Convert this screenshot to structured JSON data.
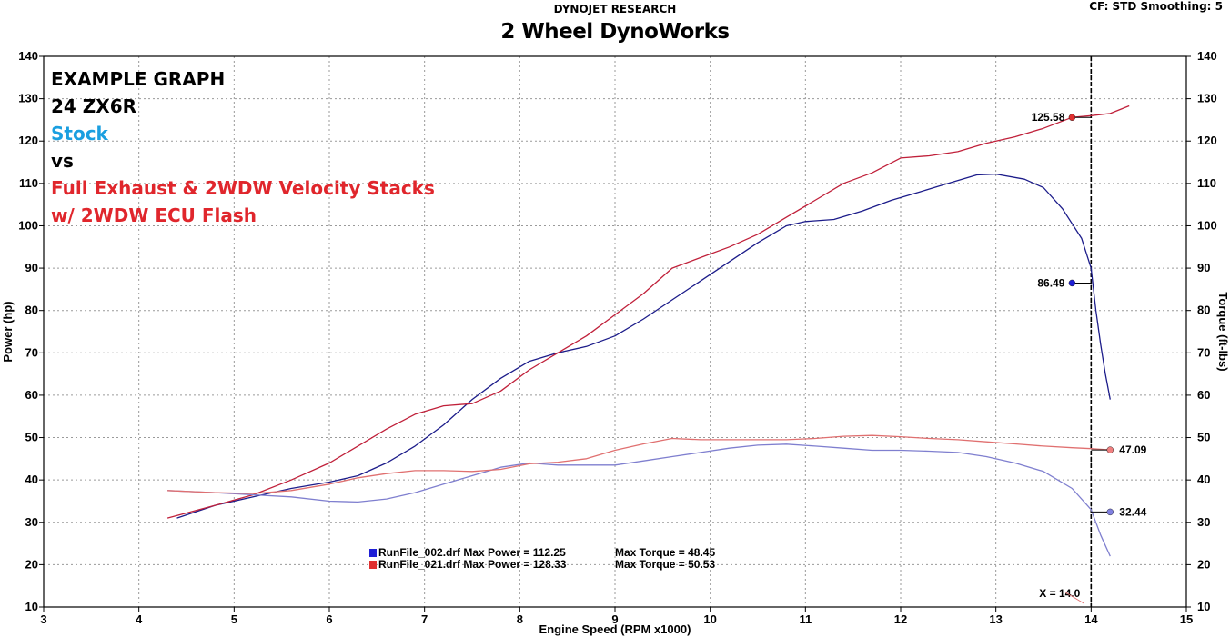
{
  "header": {
    "top_title": "DYNOJET RESEARCH",
    "main_title": "2 Wheel DynoWorks",
    "corner_info": "CF: STD  Smoothing: 5"
  },
  "annotations": [
    "EXAMPLE GRAPH",
    "24 ZX6R",
    "Stock",
    "vs",
    "Full Exhaust & 2WDW Velocity Stacks",
    "w/ 2WDW ECU Flash"
  ],
  "legend": [
    {
      "file": "RunFile_002.drf Max Power = 112.25",
      "torque": "Max Torque = 48.45",
      "color": "#1f1fd6"
    },
    {
      "file": "RunFile_021.drf Max Power = 128.33",
      "torque": "Max Torque = 50.53",
      "color": "#e03030"
    }
  ],
  "chart_data": {
    "type": "line",
    "title": "2 Wheel DynoWorks",
    "xlabel": "Engine Speed (RPM x1000)",
    "ylabel": "Power (hp)",
    "y2label": "Torque (ft-lbs)",
    "xlim": [
      3,
      15
    ],
    "ylim": [
      10,
      140
    ],
    "y2lim": [
      10,
      140
    ],
    "x_ticks": [
      3,
      4,
      5,
      6,
      7,
      8,
      9,
      10,
      11,
      12,
      13,
      14,
      15
    ],
    "y_ticks": [
      10,
      20,
      30,
      40,
      50,
      60,
      70,
      80,
      90,
      100,
      110,
      120,
      130,
      140
    ],
    "grid": true,
    "cursor": {
      "x": 14.0,
      "label": "X = 14.0"
    },
    "series": [
      {
        "name": "RunFile_002.drf",
        "measure": "power",
        "color": "#1c1c8a",
        "points": [
          [
            4.4,
            31
          ],
          [
            4.8,
            34
          ],
          [
            5.2,
            36
          ],
          [
            5.6,
            38
          ],
          [
            6.0,
            39.5
          ],
          [
            6.3,
            41
          ],
          [
            6.6,
            44
          ],
          [
            6.9,
            48
          ],
          [
            7.2,
            53
          ],
          [
            7.5,
            59
          ],
          [
            7.8,
            64
          ],
          [
            8.1,
            68
          ],
          [
            8.4,
            70
          ],
          [
            8.7,
            71.5
          ],
          [
            9.0,
            74
          ],
          [
            9.3,
            78
          ],
          [
            9.6,
            82.5
          ],
          [
            9.9,
            87
          ],
          [
            10.2,
            91.5
          ],
          [
            10.5,
            96
          ],
          [
            10.8,
            100
          ],
          [
            11.0,
            101
          ],
          [
            11.3,
            101.5
          ],
          [
            11.6,
            103.5
          ],
          [
            11.9,
            106
          ],
          [
            12.2,
            108
          ],
          [
            12.5,
            110
          ],
          [
            12.8,
            112
          ],
          [
            13.0,
            112.2
          ],
          [
            13.3,
            111
          ],
          [
            13.5,
            109
          ],
          [
            13.7,
            104
          ],
          [
            13.9,
            97
          ],
          [
            14.0,
            90
          ],
          [
            14.05,
            80
          ],
          [
            14.1,
            72
          ],
          [
            14.15,
            65
          ],
          [
            14.2,
            59
          ]
        ]
      },
      {
        "name": "RunFile_021.drf",
        "measure": "power",
        "color": "#c0203a",
        "points": [
          [
            4.3,
            31
          ],
          [
            4.8,
            34
          ],
          [
            5.2,
            36.5
          ],
          [
            5.6,
            40
          ],
          [
            6.0,
            44
          ],
          [
            6.3,
            48
          ],
          [
            6.6,
            52
          ],
          [
            6.9,
            55.5
          ],
          [
            7.2,
            57.5
          ],
          [
            7.5,
            58
          ],
          [
            7.8,
            61
          ],
          [
            8.1,
            66
          ],
          [
            8.4,
            70
          ],
          [
            8.7,
            74
          ],
          [
            9.0,
            79
          ],
          [
            9.3,
            84
          ],
          [
            9.6,
            90
          ],
          [
            9.9,
            92.5
          ],
          [
            10.2,
            95
          ],
          [
            10.5,
            98
          ],
          [
            10.8,
            102
          ],
          [
            11.1,
            106
          ],
          [
            11.4,
            110
          ],
          [
            11.7,
            112.5
          ],
          [
            12.0,
            116
          ],
          [
            12.3,
            116.5
          ],
          [
            12.6,
            117.5
          ],
          [
            12.9,
            119.5
          ],
          [
            13.2,
            121
          ],
          [
            13.5,
            123
          ],
          [
            13.8,
            125.58
          ],
          [
            14.0,
            126
          ],
          [
            14.2,
            126.5
          ],
          [
            14.4,
            128.3
          ]
        ]
      },
      {
        "name": "RunFile_002.drf",
        "measure": "torque",
        "color": "#7f7fcf",
        "points": [
          [
            4.3,
            37.5
          ],
          [
            4.8,
            37
          ],
          [
            5.2,
            36.5
          ],
          [
            5.6,
            36
          ],
          [
            6.0,
            35
          ],
          [
            6.3,
            34.8
          ],
          [
            6.6,
            35.5
          ],
          [
            6.9,
            37
          ],
          [
            7.2,
            39
          ],
          [
            7.5,
            41
          ],
          [
            7.8,
            43
          ],
          [
            8.1,
            44
          ],
          [
            8.4,
            43.5
          ],
          [
            8.7,
            43.5
          ],
          [
            9.0,
            43.5
          ],
          [
            9.3,
            44.5
          ],
          [
            9.6,
            45.5
          ],
          [
            9.9,
            46.5
          ],
          [
            10.2,
            47.5
          ],
          [
            10.5,
            48.2
          ],
          [
            10.8,
            48.45
          ],
          [
            11.1,
            48
          ],
          [
            11.4,
            47.5
          ],
          [
            11.7,
            47
          ],
          [
            12.0,
            47
          ],
          [
            12.3,
            46.8
          ],
          [
            12.6,
            46.5
          ],
          [
            12.9,
            45.5
          ],
          [
            13.2,
            44
          ],
          [
            13.5,
            42
          ],
          [
            13.8,
            38
          ],
          [
            14.0,
            33
          ],
          [
            14.1,
            27
          ],
          [
            14.2,
            22
          ]
        ]
      },
      {
        "name": "RunFile_021.drf",
        "measure": "torque",
        "color": "#e07070",
        "points": [
          [
            4.3,
            37.5
          ],
          [
            4.8,
            37
          ],
          [
            5.2,
            36.8
          ],
          [
            5.6,
            37.5
          ],
          [
            6.0,
            39
          ],
          [
            6.3,
            40.5
          ],
          [
            6.6,
            41.5
          ],
          [
            6.9,
            42.2
          ],
          [
            7.2,
            42.2
          ],
          [
            7.5,
            42
          ],
          [
            7.8,
            42.5
          ],
          [
            8.1,
            43.8
          ],
          [
            8.4,
            44.2
          ],
          [
            8.7,
            45
          ],
          [
            9.0,
            47
          ],
          [
            9.3,
            48.5
          ],
          [
            9.6,
            49.8
          ],
          [
            9.9,
            49.5
          ],
          [
            10.2,
            49.5
          ],
          [
            10.5,
            49.5
          ],
          [
            10.8,
            49.5
          ],
          [
            11.1,
            49.8
          ],
          [
            11.4,
            50.3
          ],
          [
            11.7,
            50.5
          ],
          [
            12.0,
            50.2
          ],
          [
            12.3,
            49.8
          ],
          [
            12.6,
            49.5
          ],
          [
            12.9,
            49
          ],
          [
            13.2,
            48.5
          ],
          [
            13.5,
            48
          ],
          [
            13.8,
            47.6
          ],
          [
            14.0,
            47.4
          ],
          [
            14.2,
            47.09
          ]
        ]
      }
    ],
    "markers": [
      {
        "label": "125.58",
        "x": 13.8,
        "y": 125.58,
        "color": "#e03030",
        "side": "left"
      },
      {
        "label": "86.49",
        "x": 13.8,
        "y": 86.49,
        "color": "#1f1fd6",
        "side": "left"
      },
      {
        "label": "47.09",
        "x": 14.2,
        "y": 47.09,
        "color": "#f08080",
        "side": "right"
      },
      {
        "label": "32.44",
        "x": 14.2,
        "y": 32.44,
        "color": "#8080e0",
        "side": "right"
      }
    ]
  }
}
